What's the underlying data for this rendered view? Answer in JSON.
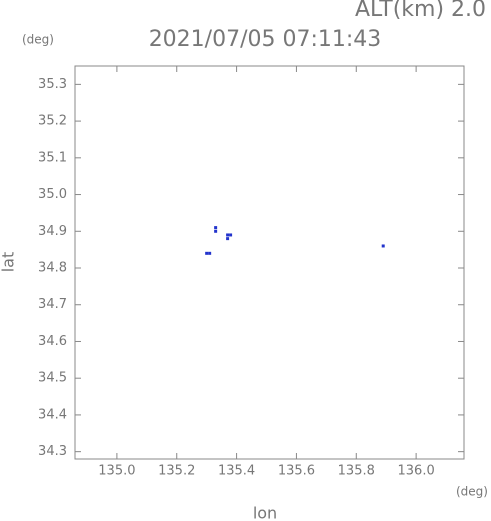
{
  "chart_data": {
    "type": "scatter",
    "title": "2021/07/05 07:11:43",
    "annotation": "ALT(km) 2.0",
    "y_unit": "(deg)",
    "x_unit": "(deg)",
    "xlabel": "lon",
    "ylabel": "lat",
    "color": "#2233cc",
    "x": [
      135.3,
      135.31,
      135.33,
      135.33,
      135.37,
      135.38,
      135.37,
      135.89
    ],
    "values": [
      34.84,
      34.84,
      34.9,
      34.91,
      34.89,
      34.89,
      34.88,
      34.86
    ],
    "xlim": [
      134.86,
      136.16
    ],
    "ylim": [
      34.28,
      35.35
    ],
    "xticks": [
      {
        "value": 135,
        "label": "135.0"
      },
      135.2,
      135.4,
      135.6,
      135.8,
      {
        "value": 136,
        "label": "136.0"
      }
    ],
    "yticks": [
      34.3,
      34.4,
      34.5,
      34.6,
      34.7,
      34.8,
      34.9,
      {
        "value": 35,
        "label": "35.0"
      },
      35.1,
      35.2,
      35.3
    ]
  }
}
